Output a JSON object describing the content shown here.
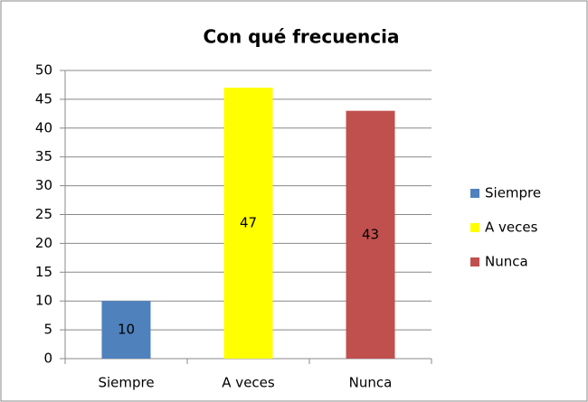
{
  "chart_data": {
    "type": "bar",
    "title": "Con qué frecuencia",
    "categories": [
      "Siempre",
      "A veces",
      "Nunca"
    ],
    "values": [
      10,
      47,
      43
    ],
    "colors": [
      "#4f81bd",
      "#ffff00",
      "#c0504d"
    ],
    "ylim": [
      0,
      50
    ],
    "yticks": [
      0,
      5,
      10,
      15,
      20,
      25,
      30,
      35,
      40,
      45,
      50
    ],
    "grid": true,
    "legend": "right",
    "data_labels": true
  }
}
